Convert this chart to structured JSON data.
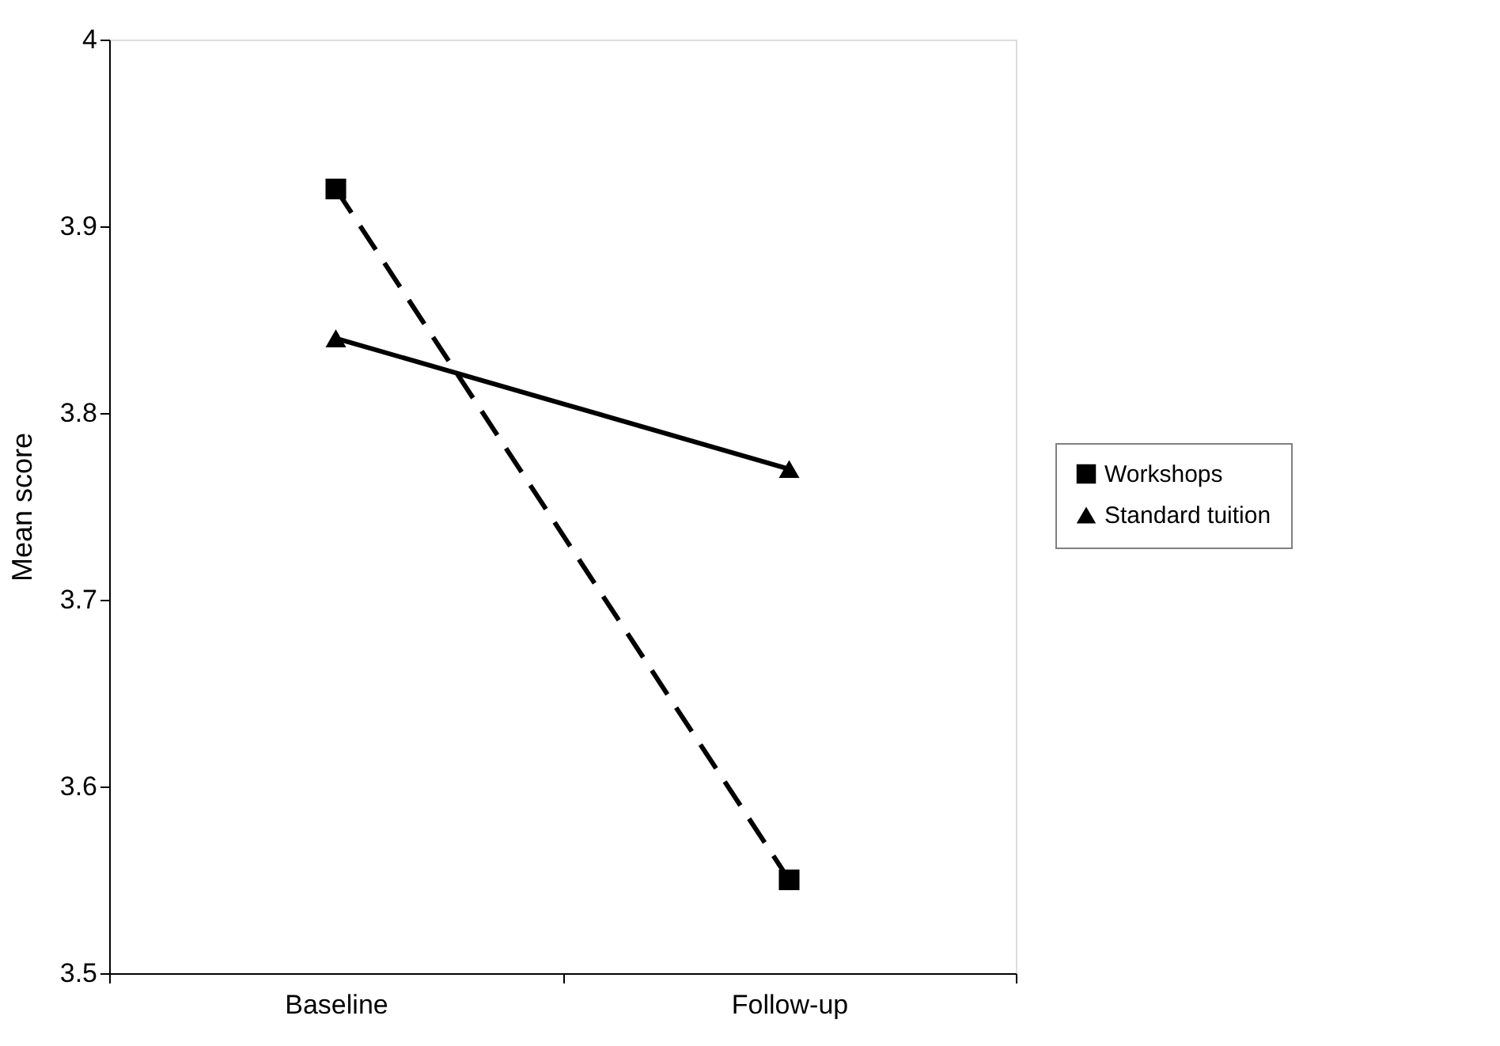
{
  "chart_data": {
    "type": "line",
    "ylabel": "Mean score",
    "categories": [
      "Baseline",
      "Follow-up"
    ],
    "series": [
      {
        "name": "Workshops",
        "color": "#000000",
        "values": [
          3.92,
          3.55
        ],
        "marker": "square",
        "line_style": "dashed"
      },
      {
        "name": "Standard tuition",
        "color": "#000000",
        "values": [
          3.84,
          3.77
        ],
        "marker": "triangle",
        "line_style": "solid"
      }
    ],
    "ylim": [
      3.5,
      4
    ],
    "yticks": [
      3.5,
      3.6,
      3.7,
      3.8,
      3.9,
      4
    ],
    "grid": false,
    "legend": "right"
  }
}
